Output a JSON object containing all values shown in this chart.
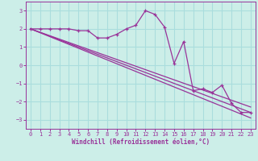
{
  "xlabel": "Windchill (Refroidissement éolien,°C)",
  "background_color": "#cceee8",
  "grid_color": "#aadddd",
  "line_color": "#993399",
  "xlim": [
    -0.5,
    23.5
  ],
  "ylim": [
    -3.5,
    3.5
  ],
  "yticks": [
    -3,
    -2,
    -1,
    0,
    1,
    2,
    3
  ],
  "xticks": [
    0,
    1,
    2,
    3,
    4,
    5,
    6,
    7,
    8,
    9,
    10,
    11,
    12,
    13,
    14,
    15,
    16,
    17,
    18,
    19,
    20,
    21,
    22,
    23
  ],
  "series1_x": [
    0,
    1,
    2,
    3,
    4,
    5,
    6,
    7,
    8,
    9,
    10,
    11,
    12,
    13,
    14,
    15,
    16,
    17,
    18,
    19,
    20,
    21,
    22,
    23
  ],
  "series1_y": [
    2.0,
    2.0,
    2.0,
    2.0,
    2.0,
    1.9,
    1.9,
    1.5,
    1.5,
    1.7,
    2.0,
    2.2,
    3.0,
    2.8,
    2.1,
    0.1,
    1.3,
    -1.4,
    -1.3,
    -1.5,
    -1.1,
    -2.1,
    -2.6,
    -2.6
  ],
  "series2_x": [
    0,
    23
  ],
  "series2_y": [
    2.0,
    -2.6
  ],
  "series3_x": [
    0,
    23
  ],
  "series3_y": [
    2.0,
    -2.3
  ],
  "series4_x": [
    0,
    23
  ],
  "series4_y": [
    2.0,
    -2.9
  ]
}
